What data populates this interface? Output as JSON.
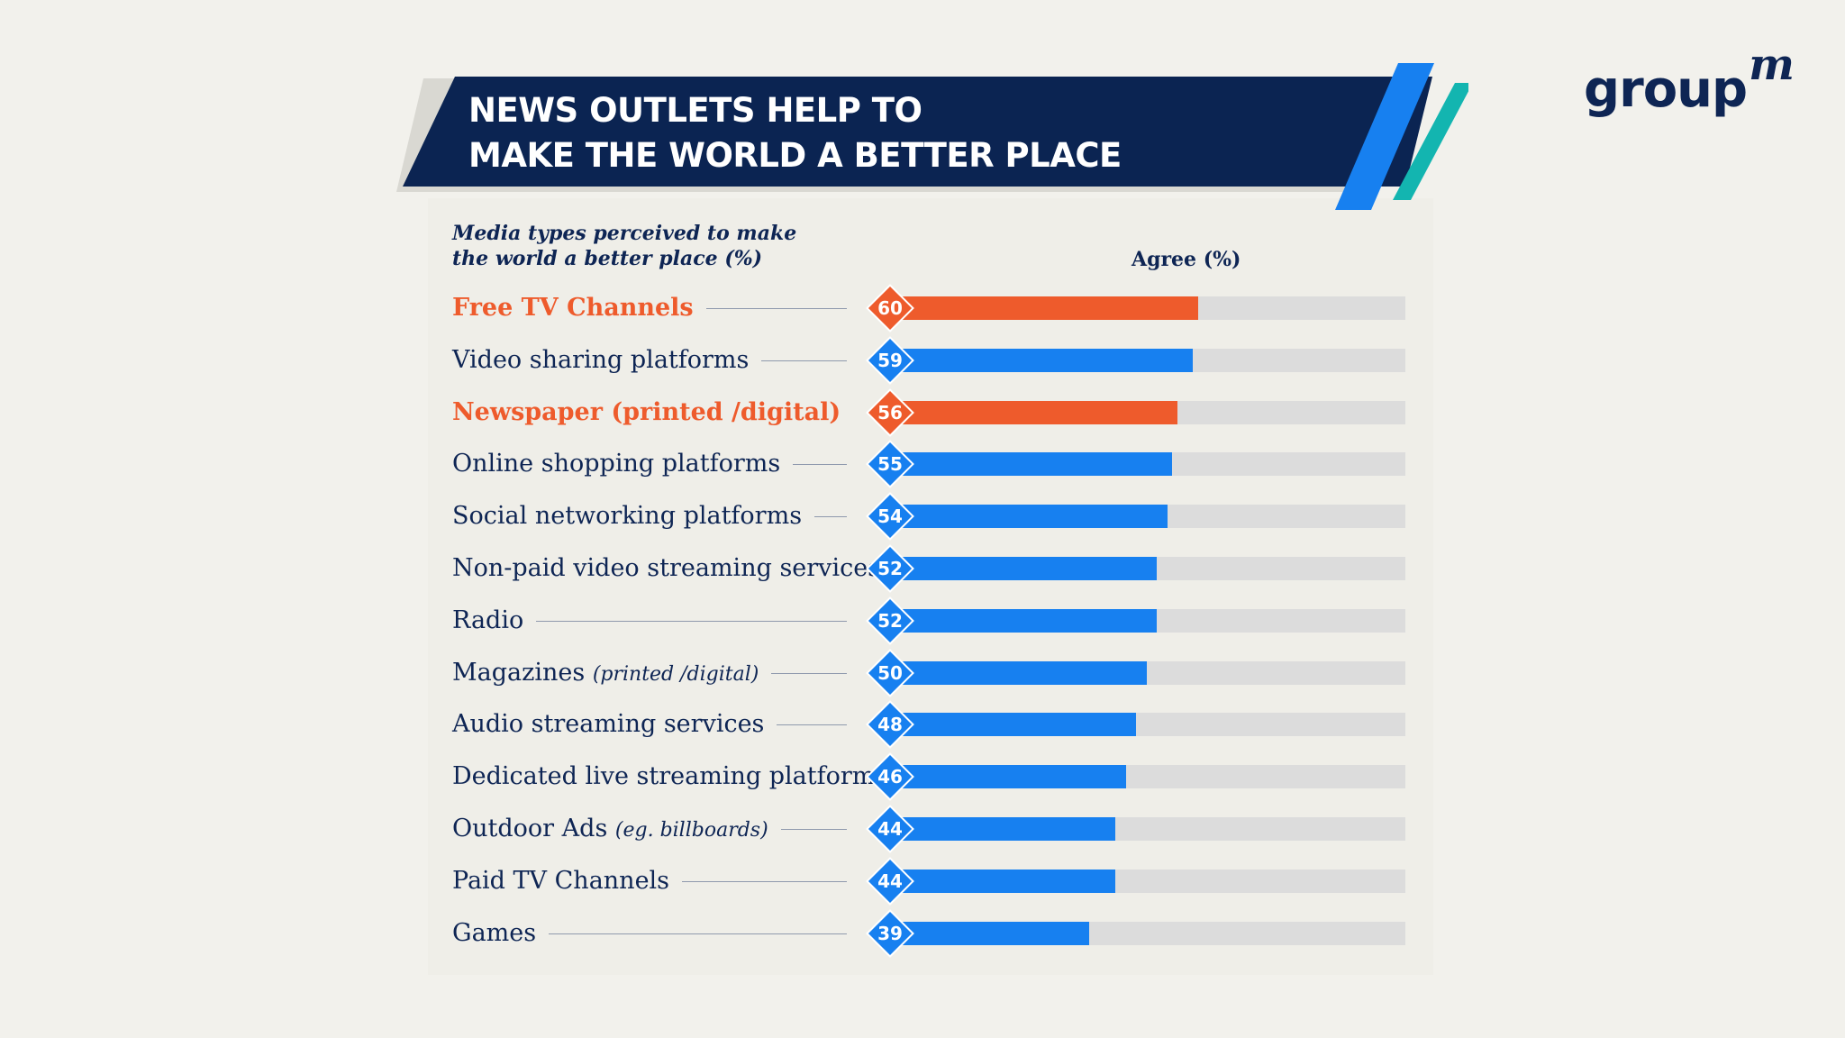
{
  "title_lines": [
    "NEWS OUTLETS HELP TO",
    "MAKE THE WORLD A BETTER PLACE"
  ],
  "logo": {
    "main": "group",
    "sup": "m"
  },
  "colors": {
    "navy": "#0b2452",
    "orange": "#ee5b2c",
    "blue": "#1780f0",
    "teal": "#13b5b0",
    "track": "#dcdcdc"
  },
  "chart_data": {
    "type": "bar",
    "orientation": "horizontal",
    "subtitle_lines": [
      "Media types perceived to make",
      "the world a better place (%)"
    ],
    "value_header": "Agree (%)",
    "xlim": [
      0,
      100
    ],
    "rows": [
      {
        "label": "Free TV Channels",
        "note": "",
        "value": 60,
        "highlight": true
      },
      {
        "label": "Video sharing platforms",
        "note": "",
        "value": 59,
        "highlight": false
      },
      {
        "label": "Newspaper (printed /digital)",
        "note": "",
        "value": 56,
        "highlight": true
      },
      {
        "label": "Online shopping platforms",
        "note": "",
        "value": 55,
        "highlight": false
      },
      {
        "label": "Social networking platforms",
        "note": "",
        "value": 54,
        "highlight": false
      },
      {
        "label": "Non-paid video streaming services",
        "note": "",
        "value": 52,
        "highlight": false
      },
      {
        "label": "Radio",
        "note": "",
        "value": 52,
        "highlight": false
      },
      {
        "label": "Magazines",
        "note": "(printed /digital)",
        "value": 50,
        "highlight": false
      },
      {
        "label": "Audio streaming services",
        "note": "",
        "value": 48,
        "highlight": false
      },
      {
        "label": "Dedicated live streaming platforms",
        "note": "",
        "value": 46,
        "highlight": false
      },
      {
        "label": "Outdoor Ads",
        "note": "(eg. billboards)",
        "value": 44,
        "highlight": false
      },
      {
        "label": "Paid TV Channels",
        "note": "",
        "value": 44,
        "highlight": false
      },
      {
        "label": "Games",
        "note": "",
        "value": 39,
        "highlight": false
      }
    ]
  }
}
